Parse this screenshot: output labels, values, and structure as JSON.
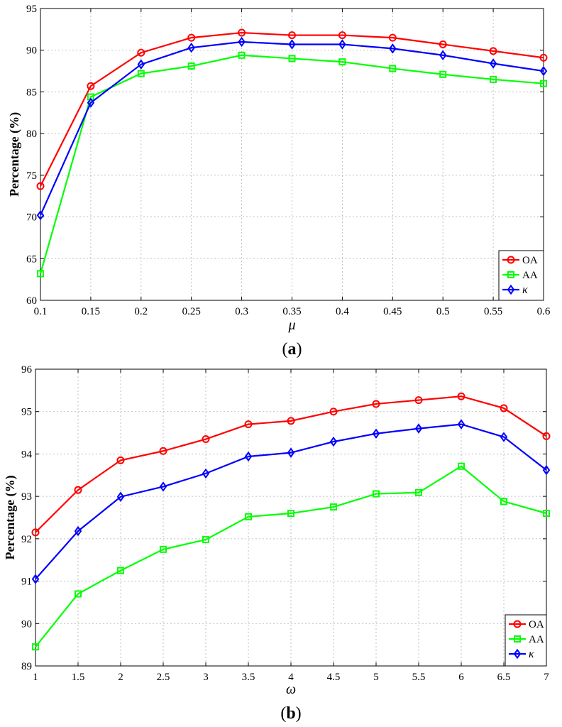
{
  "chart_data": [
    {
      "type": "line",
      "caption_letter": "a",
      "xlabel": "μ",
      "ylabel": "Percentage (%)",
      "x": [
        0.1,
        0.15,
        0.2,
        0.25,
        0.3,
        0.35,
        0.4,
        0.45,
        0.5,
        0.55,
        0.6
      ],
      "xticks": [
        "0.1",
        "0.15",
        "0.2",
        "0.25",
        "0.3",
        "0.35",
        "0.4",
        "0.45",
        "0.5",
        "0.55",
        "0.6"
      ],
      "xlim": [
        0.1,
        0.6
      ],
      "ylim": [
        60,
        95
      ],
      "yticks": [
        60,
        65,
        70,
        75,
        80,
        85,
        90,
        95
      ],
      "grid": true,
      "legend_position": "bottom-right",
      "series": [
        {
          "name": "OA",
          "color": "#ff0000",
          "marker": "circle",
          "values": [
            73.7,
            85.7,
            89.7,
            91.5,
            92.1,
            91.8,
            91.8,
            91.5,
            90.7,
            89.9,
            89.1
          ]
        },
        {
          "name": "AA",
          "color": "#00ff00",
          "marker": "square",
          "values": [
            63.2,
            84.4,
            87.2,
            88.1,
            89.4,
            89.0,
            88.6,
            87.8,
            87.1,
            86.5,
            86.0
          ]
        },
        {
          "name": "κ",
          "color": "#0000ff",
          "marker": "diamond",
          "values": [
            70.2,
            83.7,
            88.3,
            90.3,
            91.0,
            90.7,
            90.7,
            90.2,
            89.4,
            88.4,
            87.5
          ]
        }
      ]
    },
    {
      "type": "line",
      "caption_letter": "b",
      "xlabel": "ω",
      "ylabel": "Percentage (%)",
      "x": [
        1,
        1.5,
        2,
        2.5,
        3,
        3.5,
        4,
        4.5,
        5,
        5.5,
        6,
        6.5,
        7
      ],
      "xticks": [
        "1",
        "1.5",
        "2",
        "2.5",
        "3",
        "3.5",
        "4",
        "4.5",
        "5",
        "5.5",
        "6",
        "6.5",
        "7"
      ],
      "xlim": [
        1,
        7
      ],
      "ylim": [
        89,
        96
      ],
      "yticks": [
        89,
        90,
        91,
        92,
        93,
        94,
        95,
        96
      ],
      "grid": true,
      "legend_position": "bottom-right",
      "series": [
        {
          "name": "OA",
          "color": "#ff0000",
          "marker": "circle",
          "values": [
            92.15,
            93.15,
            93.85,
            94.07,
            94.35,
            94.7,
            94.78,
            95.0,
            95.18,
            95.27,
            95.36,
            95.08,
            94.42
          ]
        },
        {
          "name": "AA",
          "color": "#00ff00",
          "marker": "square",
          "values": [
            89.45,
            90.7,
            91.25,
            91.75,
            91.98,
            92.52,
            92.6,
            92.75,
            93.06,
            93.09,
            93.71,
            92.88,
            92.6
          ]
        },
        {
          "name": "κ",
          "color": "#0000ff",
          "marker": "diamond",
          "values": [
            91.05,
            92.18,
            92.99,
            93.23,
            93.54,
            93.94,
            94.03,
            94.29,
            94.48,
            94.6,
            94.7,
            94.4,
            93.62
          ]
        }
      ]
    }
  ]
}
